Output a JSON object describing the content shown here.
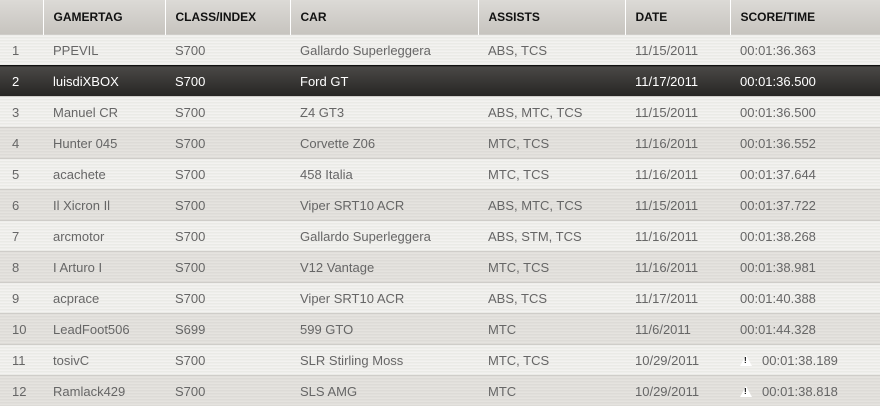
{
  "columns": [
    "",
    "GAMERTAG",
    "CLASS/INDEX",
    "CAR",
    "ASSISTS",
    "DATE",
    "SCORE/TIME"
  ],
  "rows": [
    {
      "rank": "1",
      "gamertag": "PPEVIL",
      "class": "S700",
      "car": "Gallardo Superleggera",
      "assists": "ABS, TCS",
      "date": "11/15/2011",
      "time": "00:01:36.363",
      "warning": false
    },
    {
      "rank": "2",
      "gamertag": "luisdiXBOX",
      "class": "S700",
      "car": "Ford GT",
      "assists": "",
      "date": "11/17/2011",
      "time": "00:01:36.500",
      "warning": false,
      "selected": true
    },
    {
      "rank": "3",
      "gamertag": "Manuel CR",
      "class": "S700",
      "car": "Z4 GT3",
      "assists": "ABS, MTC, TCS",
      "date": "11/15/2011",
      "time": "00:01:36.500",
      "warning": false
    },
    {
      "rank": "4",
      "gamertag": "Hunter 045",
      "class": "S700",
      "car": "Corvette Z06",
      "assists": "MTC, TCS",
      "date": "11/16/2011",
      "time": "00:01:36.552",
      "warning": false
    },
    {
      "rank": "5",
      "gamertag": "acachete",
      "class": "S700",
      "car": "458 Italia",
      "assists": "MTC, TCS",
      "date": "11/16/2011",
      "time": "00:01:37.644",
      "warning": false
    },
    {
      "rank": "6",
      "gamertag": "Il Xicron Il",
      "class": "S700",
      "car": "Viper SRT10 ACR",
      "assists": "ABS, MTC, TCS",
      "date": "11/15/2011",
      "time": "00:01:37.722",
      "warning": false
    },
    {
      "rank": "7",
      "gamertag": "arcmotor",
      "class": "S700",
      "car": "Gallardo Superleggera",
      "assists": "ABS, STM, TCS",
      "date": "11/16/2011",
      "time": "00:01:38.268",
      "warning": false
    },
    {
      "rank": "8",
      "gamertag": "I Arturo I",
      "class": "S700",
      "car": "V12 Vantage",
      "assists": "MTC, TCS",
      "date": "11/16/2011",
      "time": "00:01:38.981",
      "warning": false
    },
    {
      "rank": "9",
      "gamertag": "acprace",
      "class": "S700",
      "car": "Viper SRT10 ACR",
      "assists": "ABS, TCS",
      "date": "11/17/2011",
      "time": "00:01:40.388",
      "warning": false
    },
    {
      "rank": "10",
      "gamertag": "LeadFoot506",
      "class": "S699",
      "car": "599 GTO",
      "assists": "MTC",
      "date": "11/6/2011",
      "time": "00:01:44.328",
      "warning": false
    },
    {
      "rank": "11",
      "gamertag": "tosivC",
      "class": "S700",
      "car": "SLR Stirling Moss",
      "assists": "MTC, TCS",
      "date": "10/29/2011",
      "time": "00:01:38.189",
      "warning": true
    },
    {
      "rank": "12",
      "gamertag": "Ramlack429",
      "class": "S700",
      "car": "SLS AMG",
      "assists": "MTC",
      "date": "10/29/2011",
      "time": "00:01:38.818",
      "warning": true
    }
  ]
}
